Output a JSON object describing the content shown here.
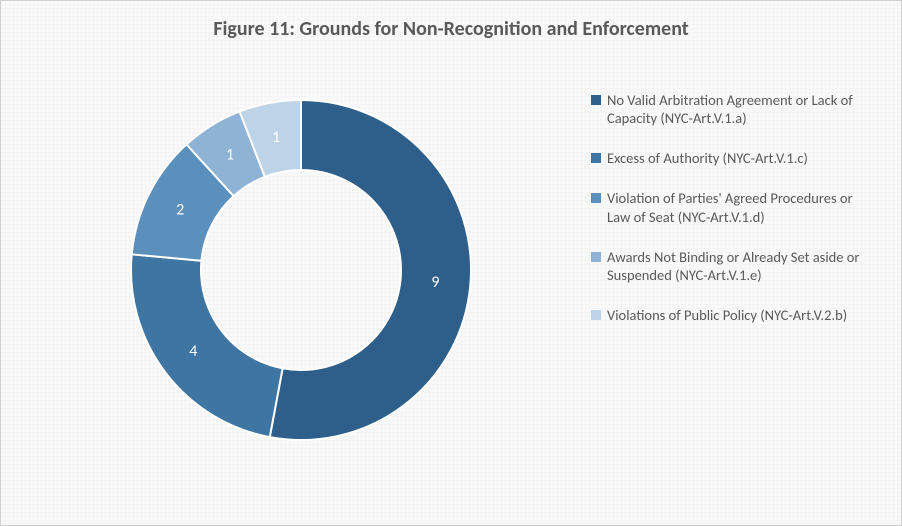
{
  "chart": {
    "type": "donut",
    "title": "Figure 11: Grounds for Non-Recognition and Enforcement",
    "title_fontsize": 20,
    "title_color": "#595959",
    "background_color": "#f9f9f9",
    "border_color": "#d0d0d0",
    "legend_font_color": "#595959",
    "legend_fontsize": 14.5,
    "label_fontsize": 16,
    "label_color": "#ffffff",
    "start_angle_deg": 0,
    "direction": "clockwise",
    "outer_radius": 170,
    "inner_radius": 100,
    "slice_gap_color": "#ffffff",
    "slice_gap_width": 2,
    "slices": [
      {
        "label": "No Valid Arbitration Agreement or Lack of Capacity (NYC-Art.V.1.a)",
        "value": 9,
        "color": "#2e5f8a"
      },
      {
        "label": "Excess of Authority (NYC-Art.V.1.c)",
        "value": 4,
        "color": "#3f75a2"
      },
      {
        "label": "Violation of Parties' Agreed Procedures or Law of Seat (NYC-Art.V.1.d)",
        "value": 2,
        "color": "#5b8fbc"
      },
      {
        "label": "Awards Not Binding or Already Set aside or Suspended (NYC-Art.V.1.e)",
        "value": 1,
        "color": "#8fb3d4"
      },
      {
        "label": "Violations of Public Policy (NYC-Art.V.2.b)",
        "value": 1,
        "color": "#bdd3e7"
      }
    ]
  }
}
